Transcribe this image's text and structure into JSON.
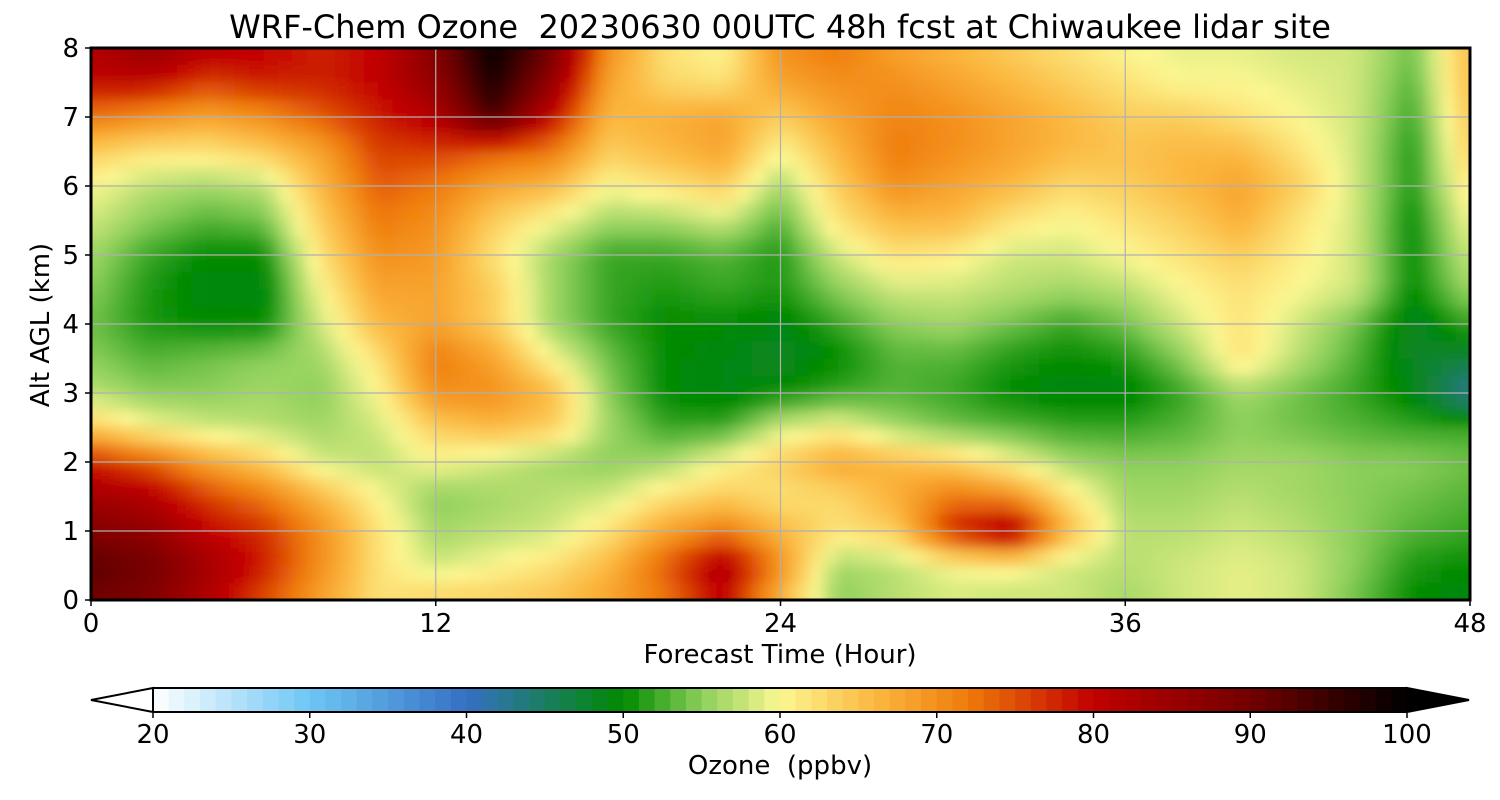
{
  "chart_data": {
    "type": "heatmap",
    "title": "WRF-Chem Ozone  20230630 00UTC 48h fcst at Chiwaukee lidar site",
    "xlabel": "Forecast Time (Hour)",
    "ylabel": "Alt AGL (km)",
    "xlim": [
      0,
      48
    ],
    "ylim": [
      0,
      8
    ],
    "xticks": [
      0,
      12,
      24,
      36,
      48
    ],
    "yticks": [
      0,
      1,
      2,
      3,
      4,
      5,
      6,
      7,
      8
    ],
    "grid": true,
    "x": [
      0,
      2,
      4,
      6,
      8,
      10,
      12,
      14,
      16,
      18,
      20,
      22,
      24,
      26,
      28,
      30,
      32,
      34,
      36,
      38,
      40,
      42,
      44,
      46,
      48
    ],
    "y": [
      0,
      0.5,
      1,
      1.5,
      2,
      2.5,
      3,
      3.5,
      4,
      4.5,
      5,
      5.5,
      6,
      6.5,
      7,
      7.5,
      8
    ],
    "values": [
      [
        90,
        88,
        82,
        75,
        68,
        62,
        64,
        64,
        65,
        68,
        72,
        80,
        66,
        55,
        57,
        58,
        57,
        58,
        56,
        58,
        59,
        58,
        54,
        50,
        49
      ],
      [
        92,
        90,
        84,
        78,
        70,
        62,
        58,
        60,
        62,
        66,
        74,
        83,
        70,
        56,
        57,
        60,
        61,
        58,
        57,
        58,
        59,
        58,
        55,
        51,
        50
      ],
      [
        88,
        86,
        80,
        77,
        70,
        62,
        56,
        57,
        58,
        62,
        68,
        72,
        66,
        62,
        64,
        78,
        84,
        66,
        57,
        57,
        58,
        57,
        55,
        53,
        52
      ],
      [
        84,
        82,
        76,
        72,
        66,
        60,
        55,
        56,
        57,
        58,
        62,
        64,
        62,
        63,
        67,
        72,
        70,
        62,
        56,
        56,
        57,
        56,
        55,
        54,
        53
      ],
      [
        78,
        74,
        68,
        64,
        58,
        57,
        60,
        58,
        56,
        55,
        56,
        60,
        64,
        68,
        66,
        64,
        60,
        56,
        55,
        55,
        56,
        56,
        55,
        55,
        54
      ],
      [
        64,
        60,
        58,
        57,
        56,
        58,
        64,
        66,
        64,
        56,
        52,
        52,
        58,
        60,
        56,
        54,
        53,
        52,
        52,
        53,
        55,
        54,
        53,
        52,
        52
      ],
      [
        57,
        55,
        55,
        56,
        55,
        60,
        70,
        70,
        66,
        55,
        50,
        49,
        50,
        52,
        53,
        52,
        50,
        49,
        49,
        52,
        56,
        54,
        52,
        49,
        42
      ],
      [
        55,
        53,
        54,
        55,
        56,
        62,
        72,
        68,
        60,
        54,
        50,
        49,
        48,
        50,
        53,
        53,
        51,
        50,
        51,
        55,
        62,
        57,
        53,
        48,
        47
      ],
      [
        54,
        51,
        50,
        50,
        58,
        66,
        68,
        64,
        56,
        52,
        50,
        50,
        49,
        52,
        55,
        56,
        54,
        52,
        54,
        58,
        62,
        58,
        54,
        48,
        52
      ],
      [
        55,
        51,
        49,
        49,
        60,
        68,
        68,
        64,
        56,
        52,
        51,
        52,
        51,
        55,
        58,
        58,
        57,
        56,
        57,
        60,
        62,
        60,
        58,
        50,
        56
      ],
      [
        56,
        52,
        50,
        50,
        62,
        70,
        69,
        62,
        56,
        52,
        52,
        53,
        51,
        58,
        62,
        61,
        58,
        58,
        60,
        62,
        64,
        61,
        58,
        50,
        58
      ],
      [
        58,
        55,
        53,
        54,
        64,
        72,
        70,
        64,
        60,
        56,
        56,
        58,
        53,
        62,
        66,
        66,
        62,
        60,
        62,
        64,
        67,
        62,
        58,
        50,
        60
      ],
      [
        60,
        57,
        56,
        57,
        66,
        74,
        72,
        68,
        66,
        60,
        62,
        64,
        56,
        64,
        70,
        68,
        66,
        63,
        64,
        66,
        68,
        64,
        58,
        51,
        62
      ],
      [
        64,
        62,
        62,
        64,
        68,
        76,
        76,
        74,
        72,
        64,
        66,
        68,
        60,
        66,
        72,
        70,
        68,
        66,
        65,
        66,
        66,
        62,
        58,
        51,
        64
      ],
      [
        72,
        70,
        68,
        70,
        74,
        78,
        82,
        94,
        80,
        66,
        67,
        68,
        64,
        68,
        71,
        70,
        68,
        66,
        64,
        64,
        62,
        60,
        58,
        52,
        65
      ],
      [
        80,
        80,
        76,
        78,
        78,
        80,
        86,
        98,
        86,
        68,
        63,
        62,
        68,
        70,
        70,
        68,
        66,
        64,
        62,
        60,
        60,
        59,
        58,
        53,
        66
      ],
      [
        82,
        86,
        82,
        80,
        78,
        80,
        88,
        100,
        90,
        70,
        62,
        60,
        70,
        72,
        68,
        66,
        64,
        62,
        60,
        59,
        59,
        58,
        58,
        54,
        66
      ]
    ],
    "colorbar": {
      "label": "Ozone  (ppbv)",
      "min": 20,
      "max": 100,
      "ticks": [
        20,
        30,
        40,
        50,
        60,
        70,
        80,
        90,
        100
      ],
      "extend": "both",
      "stops": [
        {
          "v": 20,
          "color": "#ffffff"
        },
        {
          "v": 30,
          "color": "#6ec6f4"
        },
        {
          "v": 40,
          "color": "#3570c4"
        },
        {
          "v": 50,
          "color": "#008a00"
        },
        {
          "v": 55,
          "color": "#8ccf5a"
        },
        {
          "v": 60,
          "color": "#fcf792"
        },
        {
          "v": 66,
          "color": "#fbb840"
        },
        {
          "v": 72,
          "color": "#ef7b0a"
        },
        {
          "v": 80,
          "color": "#c10000"
        },
        {
          "v": 90,
          "color": "#720000"
        },
        {
          "v": 100,
          "color": "#000000"
        }
      ]
    }
  }
}
